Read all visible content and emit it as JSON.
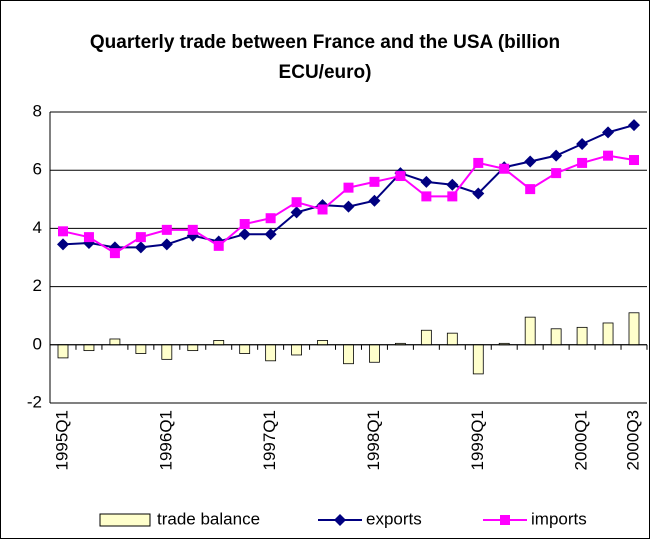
{
  "chart_data": {
    "type": "combo",
    "title": "Quarterly trade between France and the USA (billion ECU/euro)",
    "categories": [
      "1995Q1",
      null,
      null,
      null,
      "1996Q1",
      null,
      null,
      null,
      "1997Q1",
      null,
      null,
      null,
      "1998Q1",
      null,
      null,
      null,
      "1999Q1",
      null,
      null,
      null,
      "2000Q1",
      null,
      "2000Q3"
    ],
    "series": [
      {
        "name": "trade balance",
        "type": "bar",
        "color": "#ffffcc",
        "values": [
          -0.45,
          -0.2,
          0.2,
          -0.3,
          -0.5,
          -0.2,
          0.15,
          -0.3,
          -0.55,
          -0.35,
          0.15,
          -0.65,
          -0.6,
          0.05,
          0.5,
          0.4,
          -1.0,
          0.05,
          0.95,
          0.55,
          0.6,
          0.75,
          1.1
        ]
      },
      {
        "name": "exports",
        "type": "line",
        "marker": "diamond",
        "color": "#000080",
        "values": [
          3.45,
          3.5,
          3.35,
          3.35,
          3.45,
          3.75,
          3.55,
          3.8,
          3.8,
          4.55,
          4.8,
          4.75,
          4.95,
          5.9,
          5.6,
          5.5,
          5.2,
          6.1,
          6.3,
          6.5,
          6.9,
          7.3,
          7.55
        ]
      },
      {
        "name": "imports",
        "type": "line",
        "marker": "square",
        "color": "#ff00ff",
        "values": [
          3.9,
          3.7,
          3.15,
          3.7,
          3.95,
          3.95,
          3.4,
          4.15,
          4.35,
          4.9,
          4.65,
          5.4,
          5.6,
          5.8,
          5.1,
          5.1,
          6.25,
          6.05,
          5.35,
          5.9,
          6.25,
          6.5,
          6.35
        ]
      }
    ],
    "ylim": [
      -2,
      8
    ],
    "yticks": [
      -2,
      0,
      2,
      4,
      6,
      8
    ],
    "grid": true,
    "legend": "bottom"
  }
}
